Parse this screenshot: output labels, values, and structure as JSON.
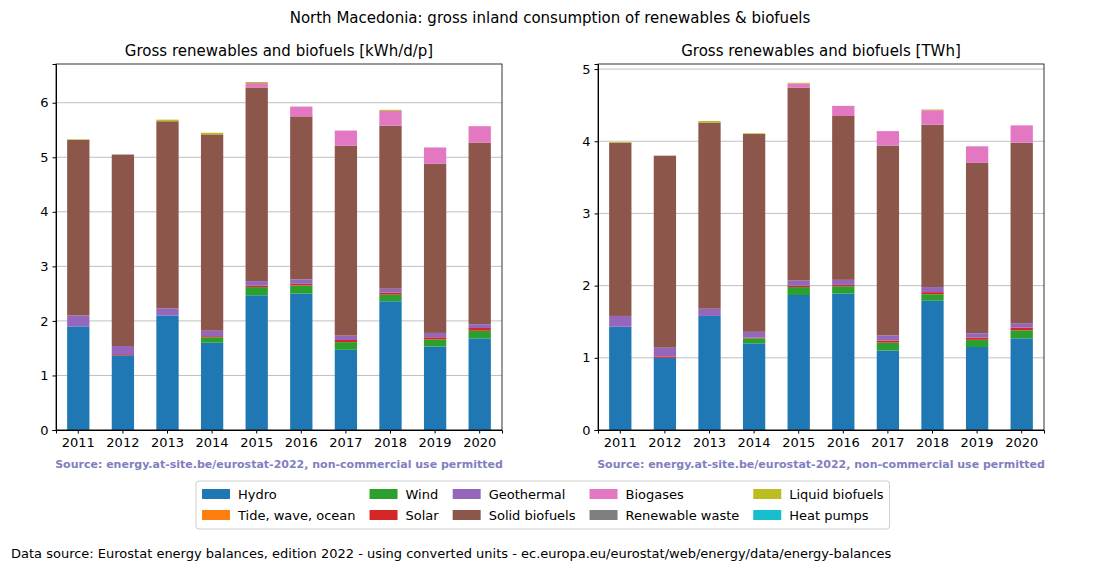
{
  "title": "North Macedonia: gross inland consumption of renewables & biofuels",
  "footnote": "Data source: Eurostat energy balances, edition 2022 - using converted units - ec.europa.eu/eurostat/web/energy/data/energy-balances",
  "chart_data": [
    {
      "type": "bar",
      "stacked": true,
      "grid": true,
      "legend": "bottom",
      "title": "Gross renewables and biofuels [kWh/d/p]",
      "source": "Source: energy.at-site.be/eurostat-2022, non-commercial use permitted",
      "categories": [
        "2011",
        "2012",
        "2013",
        "2014",
        "2015",
        "2016",
        "2017",
        "2018",
        "2019",
        "2020"
      ],
      "ylim": [
        0,
        6.71
      ],
      "yticks": [
        0,
        1,
        2,
        3,
        4,
        5,
        6
      ],
      "series": [
        {
          "name": "Hydro",
          "color": "#1f77b4",
          "values": [
            1.9,
            1.37,
            2.1,
            1.6,
            2.47,
            2.5,
            1.47,
            2.36,
            1.53,
            1.68
          ]
        },
        {
          "name": "Tide, wave, ocean",
          "color": "#ff7f0e",
          "values": [
            0,
            0,
            0,
            0,
            0,
            0,
            0,
            0,
            0,
            0
          ]
        },
        {
          "name": "Wind",
          "color": "#2ca02c",
          "values": [
            0,
            0,
            0,
            0.1,
            0.15,
            0.15,
            0.14,
            0.12,
            0.13,
            0.14
          ]
        },
        {
          "name": "Solar",
          "color": "#d62728",
          "values": [
            0,
            0.02,
            0,
            0.02,
            0.03,
            0.03,
            0.04,
            0.04,
            0.04,
            0.05
          ]
        },
        {
          "name": "Geothermal",
          "color": "#9467bd",
          "values": [
            0.2,
            0.15,
            0.13,
            0.1,
            0.08,
            0.08,
            0.08,
            0.07,
            0.08,
            0.07
          ]
        },
        {
          "name": "Solid biofuels",
          "color": "#8c564b",
          "values": [
            3.22,
            3.51,
            3.43,
            3.6,
            3.55,
            2.99,
            3.48,
            2.99,
            3.1,
            3.33
          ]
        },
        {
          "name": "Biogases",
          "color": "#e377c2",
          "values": [
            0,
            0,
            0,
            0,
            0.08,
            0.18,
            0.28,
            0.27,
            0.3,
            0.3
          ]
        },
        {
          "name": "Renewable waste",
          "color": "#7f7f7f",
          "values": [
            0,
            0,
            0,
            0,
            0,
            0,
            0,
            0,
            0,
            0
          ]
        },
        {
          "name": "Liquid biofuels",
          "color": "#bcbd22",
          "values": [
            0.01,
            0,
            0.03,
            0.03,
            0.02,
            0,
            0,
            0.02,
            0,
            0
          ]
        },
        {
          "name": "Heat pumps",
          "color": "#17becf",
          "values": [
            0,
            0,
            0,
            0,
            0,
            0,
            0,
            0,
            0,
            0
          ]
        }
      ]
    },
    {
      "type": "bar",
      "stacked": true,
      "grid": true,
      "title": "Gross renewables and biofuels [TWh]",
      "source": "Source: energy.at-site.be/eurostat-2022, non-commercial use permitted",
      "categories": [
        "2011",
        "2012",
        "2013",
        "2014",
        "2015",
        "2016",
        "2017",
        "2018",
        "2019",
        "2020"
      ],
      "ylim": [
        0,
        5.07
      ],
      "yticks": [
        0,
        1,
        2,
        3,
        4,
        5
      ],
      "series": [
        {
          "name": "Hydro",
          "color": "#1f77b4",
          "values": [
            1.43,
            1.0,
            1.58,
            1.2,
            1.87,
            1.89,
            1.1,
            1.79,
            1.15,
            1.27
          ]
        },
        {
          "name": "Tide, wave, ocean",
          "color": "#ff7f0e",
          "values": [
            0,
            0,
            0,
            0,
            0,
            0,
            0,
            0,
            0,
            0
          ]
        },
        {
          "name": "Wind",
          "color": "#2ca02c",
          "values": [
            0,
            0,
            0,
            0.07,
            0.11,
            0.1,
            0.11,
            0.09,
            0.1,
            0.11
          ]
        },
        {
          "name": "Solar",
          "color": "#d62728",
          "values": [
            0,
            0.02,
            0,
            0.01,
            0.02,
            0.02,
            0.03,
            0.03,
            0.03,
            0.04
          ]
        },
        {
          "name": "Geothermal",
          "color": "#9467bd",
          "values": [
            0.15,
            0.12,
            0.1,
            0.08,
            0.07,
            0.07,
            0.07,
            0.07,
            0.06,
            0.06
          ]
        },
        {
          "name": "Solid biofuels",
          "color": "#8c564b",
          "values": [
            2.4,
            2.66,
            2.58,
            2.74,
            2.67,
            2.27,
            2.63,
            2.25,
            2.36,
            2.5
          ]
        },
        {
          "name": "Biogases",
          "color": "#e377c2",
          "values": [
            0,
            0,
            0,
            0,
            0.06,
            0.14,
            0.2,
            0.2,
            0.23,
            0.24
          ]
        },
        {
          "name": "Renewable waste",
          "color": "#7f7f7f",
          "values": [
            0,
            0,
            0,
            0,
            0,
            0,
            0,
            0,
            0,
            0
          ]
        },
        {
          "name": "Liquid biofuels",
          "color": "#bcbd22",
          "values": [
            0.01,
            0,
            0.02,
            0.01,
            0.01,
            0,
            0,
            0.01,
            0,
            0
          ]
        },
        {
          "name": "Heat pumps",
          "color": "#17becf",
          "values": [
            0,
            0,
            0,
            0,
            0,
            0,
            0,
            0,
            0,
            0
          ]
        }
      ]
    }
  ]
}
